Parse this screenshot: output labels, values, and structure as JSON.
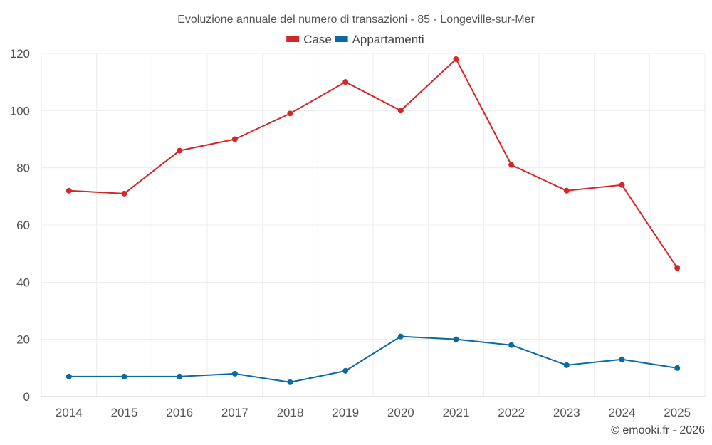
{
  "chart_data": {
    "type": "line",
    "title": "Evoluzione annuale del numero di transazioni - 85 - Longeville-sur-Mer",
    "categories": [
      "2014",
      "2015",
      "2016",
      "2017",
      "2018",
      "2019",
      "2020",
      "2021",
      "2022",
      "2023",
      "2024",
      "2025"
    ],
    "series": [
      {
        "name": "Case",
        "color": "#d62728",
        "values": [
          72,
          71,
          86,
          90,
          99,
          110,
          100,
          118,
          81,
          72,
          74,
          45
        ]
      },
      {
        "name": "Appartamenti",
        "color": "#0a6aa1",
        "values": [
          7,
          7,
          7,
          8,
          5,
          9,
          21,
          20,
          18,
          11,
          13,
          10
        ]
      }
    ],
    "yticks": [
      0,
      20,
      40,
      60,
      80,
      100,
      120
    ],
    "ylim": [
      0,
      120
    ],
    "xlabel": "",
    "ylabel": "",
    "grid": true,
    "legend_position": "top-center"
  },
  "credit": "© emooki.fr - 2026"
}
